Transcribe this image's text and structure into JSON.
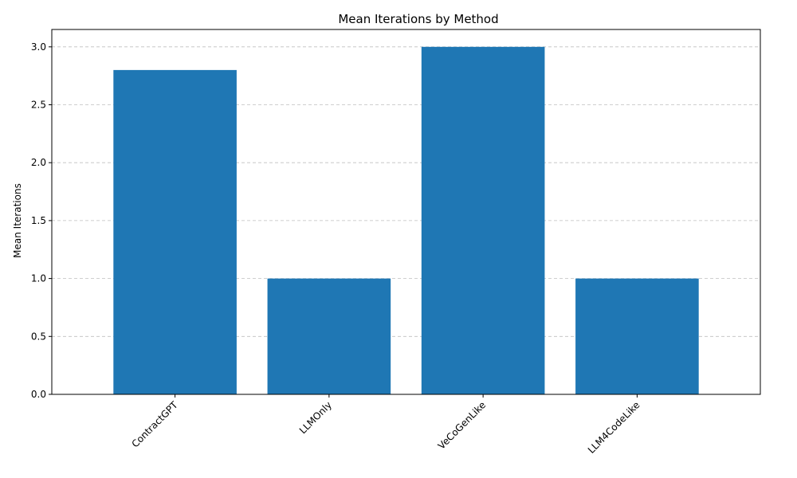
{
  "chart_data": {
    "type": "bar",
    "title": "Mean Iterations by Method",
    "xlabel": "",
    "ylabel": "Mean Iterations",
    "categories": [
      "ContractGPT",
      "LLMOnly",
      "VeCoGenLike",
      "LLM4CodeLike"
    ],
    "values": [
      2.8,
      1.0,
      3.0,
      1.0
    ],
    "ylim": [
      0,
      3.15
    ],
    "yticks": [
      0.0,
      0.5,
      1.0,
      1.5,
      2.0,
      2.5,
      3.0
    ],
    "ytick_labels": [
      "0.0",
      "0.5",
      "1.0",
      "1.5",
      "2.0",
      "2.5",
      "3.0"
    ],
    "grid": "y-dashed",
    "bar_color": "#1f77b4"
  }
}
